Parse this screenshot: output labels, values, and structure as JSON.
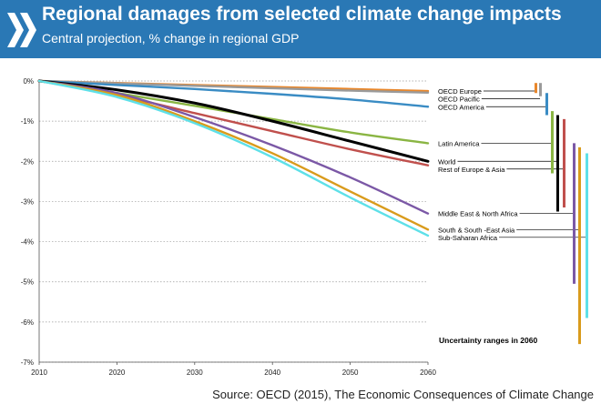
{
  "header": {
    "title": "Regional damages from selected climate change impacts",
    "subtitle": "Central projection, % change in regional GDP"
  },
  "source": "Source: OECD (2015), The Economic Consequences of Climate Change",
  "chart_data": {
    "type": "line",
    "title": "Regional damages from selected climate change impacts",
    "subtitle": "Central projection, % change in regional GDP",
    "x": [
      2010,
      2020,
      2030,
      2040,
      2050,
      2060
    ],
    "xlim": [
      2010,
      2060
    ],
    "ylim": [
      -7,
      0
    ],
    "x_ticks": [
      "2010",
      "2020",
      "2030",
      "2040",
      "2050",
      "2060"
    ],
    "y_ticks": [
      "0%",
      "-1%",
      "-2%",
      "-3%",
      "-4%",
      "-5%",
      "-6%",
      "-7%"
    ],
    "grid": "horizontal dotted",
    "series": [
      {
        "name": "OECD Europe",
        "color": "#e8872c",
        "values": [
          0.0,
          -0.05,
          -0.1,
          -0.15,
          -0.2,
          -0.25
        ],
        "range": [
          -0.05,
          -0.3
        ]
      },
      {
        "name": "OECD Pacific",
        "color": "#9a9a9a",
        "values": [
          0.0,
          -0.06,
          -0.12,
          -0.18,
          -0.24,
          -0.29
        ],
        "range": [
          -0.05,
          -0.38
        ]
      },
      {
        "name": "OECD America",
        "color": "#3a8cc4",
        "values": [
          0.0,
          -0.1,
          -0.2,
          -0.32,
          -0.46,
          -0.64
        ],
        "range": [
          -0.3,
          -0.85
        ]
      },
      {
        "name": "Latin America",
        "color": "#8ab543",
        "values": [
          0.0,
          -0.3,
          -0.62,
          -0.95,
          -1.28,
          -1.55
        ],
        "range": [
          -0.75,
          -2.3
        ]
      },
      {
        "name": "World",
        "color": "#000000",
        "values": [
          0.0,
          -0.22,
          -0.55,
          -1.0,
          -1.5,
          -2.0
        ],
        "range": [
          -0.85,
          -3.25
        ]
      },
      {
        "name": "Rest of Europe & Asia",
        "color": "#c0504d",
        "values": [
          0.0,
          -0.35,
          -0.8,
          -1.25,
          -1.7,
          -2.1
        ],
        "range": [
          -0.95,
          -3.15
        ]
      },
      {
        "name": "Middle East & North Africa",
        "color": "#7b58a6",
        "values": [
          0.0,
          -0.3,
          -0.9,
          -1.6,
          -2.4,
          -3.3
        ],
        "range": [
          -1.55,
          -5.05
        ]
      },
      {
        "name": "South & South-East Asia",
        "color": "#d99b1c",
        "values": [
          0.0,
          -0.35,
          -1.0,
          -1.8,
          -2.75,
          -3.7
        ],
        "range": [
          -1.65,
          -6.55
        ]
      },
      {
        "name": "Sub-Saharan Africa",
        "color": "#5ee0e8",
        "values": [
          0.0,
          -0.4,
          -1.05,
          -1.9,
          -2.9,
          -3.85
        ],
        "range": [
          -1.8,
          -5.9
        ]
      }
    ],
    "legend_labels": [
      {
        "label": "OECD Europe",
        "series": "OECD Europe"
      },
      {
        "label": "OECD Pacific",
        "series": "OECD Pacific"
      },
      {
        "label": "OECD America",
        "series": "OECD America"
      },
      {
        "label": "Latin America",
        "series": "Latin America"
      },
      {
        "label": "World",
        "series": "World"
      },
      {
        "label": "Rest of Europe & Asia",
        "series": "Rest of Europe & Asia"
      },
      {
        "label": "Middle East & North Africa",
        "series": "Middle East & North Africa"
      },
      {
        "label": "South & South -East Asia",
        "series": "South & South-East Asia"
      },
      {
        "label": "Sub-Saharan Africa",
        "series": "Sub-Saharan Africa"
      }
    ],
    "annotation": "Uncertainty ranges in 2060"
  },
  "colors": {
    "header": "#2a78b5",
    "logo": "#ffffff"
  },
  "icons": {
    "logo": "oecd-chevron-logo"
  }
}
